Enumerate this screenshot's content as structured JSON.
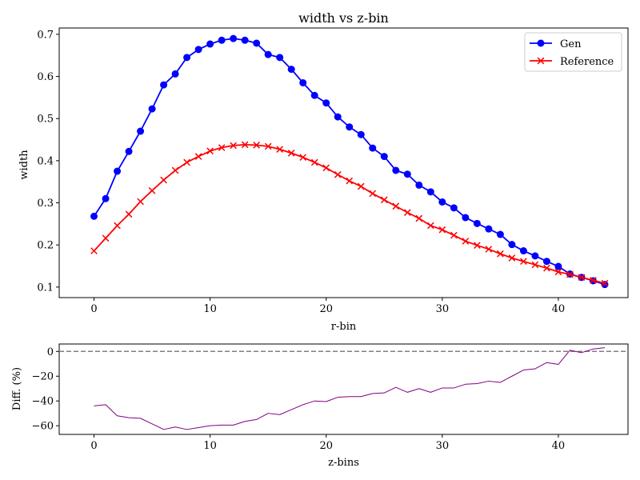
{
  "chart_data": [
    {
      "type": "line",
      "title": "width vs z-bin",
      "xlabel": "r-bin",
      "ylabel": "width",
      "xlim": [
        -3,
        46
      ],
      "ylim": [
        0.075,
        0.715
      ],
      "xticks": [
        "0",
        "10",
        "20",
        "30",
        "40"
      ],
      "yticks": [
        "0.1",
        "0.2",
        "0.3",
        "0.4",
        "0.5",
        "0.6",
        "0.7"
      ],
      "grid": false,
      "legend": "top-right",
      "x": [
        0,
        1,
        2,
        3,
        4,
        5,
        6,
        7,
        8,
        9,
        10,
        11,
        12,
        13,
        14,
        15,
        16,
        17,
        18,
        19,
        20,
        21,
        22,
        23,
        24,
        25,
        26,
        27,
        28,
        29,
        30,
        31,
        32,
        33,
        34,
        35,
        36,
        37,
        38,
        39,
        40,
        41,
        42,
        43,
        44
      ],
      "series": [
        {
          "name": "Gen",
          "color": "#0000ff",
          "marker": "circle",
          "values": [
            0.268,
            0.31,
            0.375,
            0.422,
            0.47,
            0.523,
            0.58,
            0.606,
            0.645,
            0.664,
            0.677,
            0.686,
            0.69,
            0.686,
            0.679,
            0.652,
            0.645,
            0.617,
            0.585,
            0.555,
            0.537,
            0.504,
            0.48,
            0.462,
            0.43,
            0.41,
            0.377,
            0.368,
            0.342,
            0.326,
            0.302,
            0.288,
            0.265,
            0.251,
            0.238,
            0.225,
            0.201,
            0.186,
            0.174,
            0.161,
            0.149,
            0.131,
            0.123,
            0.115,
            0.106
          ]
        },
        {
          "name": "Reference",
          "color": "#ff0000",
          "marker": "x",
          "values": [
            0.186,
            0.216,
            0.246,
            0.273,
            0.303,
            0.329,
            0.354,
            0.377,
            0.396,
            0.41,
            0.423,
            0.431,
            0.436,
            0.438,
            0.437,
            0.434,
            0.427,
            0.418,
            0.408,
            0.396,
            0.383,
            0.367,
            0.352,
            0.339,
            0.322,
            0.307,
            0.292,
            0.277,
            0.263,
            0.246,
            0.236,
            0.223,
            0.209,
            0.199,
            0.19,
            0.179,
            0.169,
            0.161,
            0.153,
            0.145,
            0.136,
            0.13,
            0.123,
            0.116,
            0.109
          ]
        }
      ]
    },
    {
      "type": "line",
      "title": "",
      "xlabel": "z-bins",
      "ylabel": "Diff. (%)",
      "xlim": [
        -3,
        46
      ],
      "ylim": [
        -67,
        6
      ],
      "xticks": [
        "0",
        "10",
        "20",
        "30",
        "40"
      ],
      "yticks": [
        "0",
        "−20",
        "−40",
        "−60"
      ],
      "reference_line": 0,
      "grid": false,
      "x": [
        0,
        1,
        2,
        3,
        4,
        5,
        6,
        7,
        8,
        9,
        10,
        11,
        12,
        13,
        14,
        15,
        16,
        17,
        18,
        19,
        20,
        21,
        22,
        23,
        24,
        25,
        26,
        27,
        28,
        29,
        30,
        31,
        32,
        33,
        34,
        35,
        36,
        37,
        38,
        39,
        40,
        41,
        42,
        43,
        44
      ],
      "series": [
        {
          "color": "#800080",
          "values": [
            -44,
            -43,
            -52,
            -53.5,
            -54,
            -58.5,
            -63,
            -61,
            -63,
            -61.5,
            -60,
            -59.5,
            -59.5,
            -56.5,
            -55,
            -50,
            -51,
            -47,
            -43,
            -40,
            -40.5,
            -37,
            -36.5,
            -36.5,
            -34,
            -33.5,
            -29,
            -33,
            -30,
            -33,
            -29.5,
            -29.5,
            -26.5,
            -26,
            -24,
            -25,
            -20,
            -15,
            -14,
            -9,
            -10.5,
            1,
            -1,
            2,
            3
          ]
        }
      ]
    }
  ]
}
